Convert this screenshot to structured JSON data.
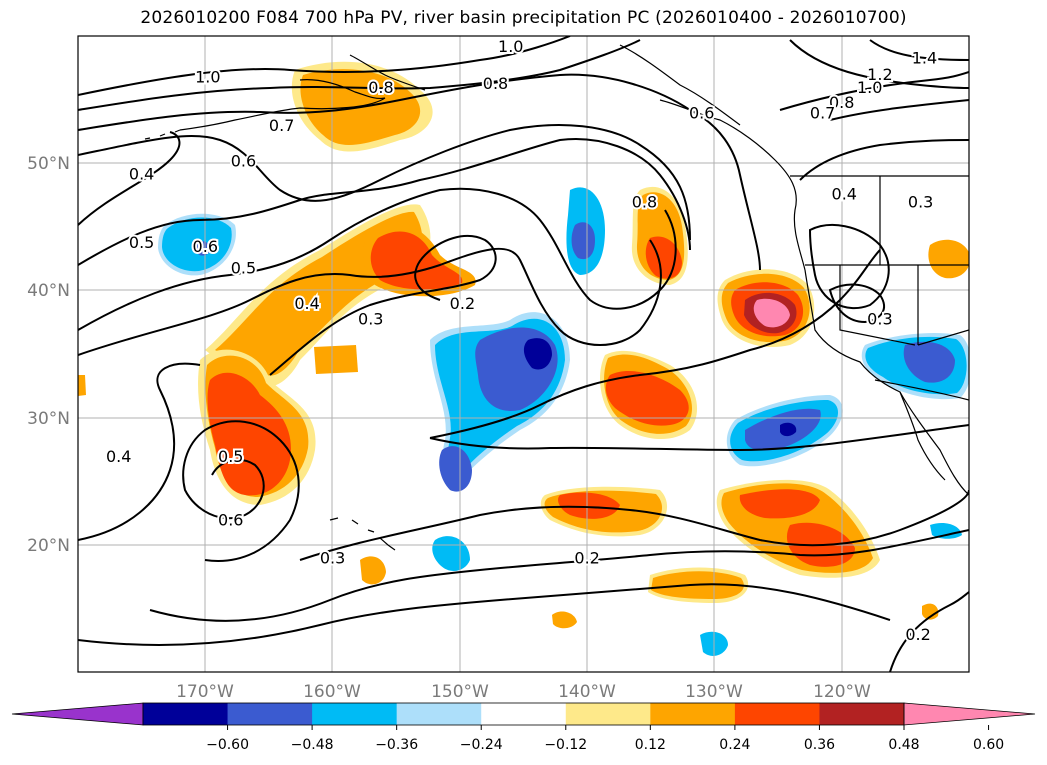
{
  "title": "2026010200 F084 700 hPa PV, river basin precipitation PC (2026010400 - 2026010700)",
  "map": {
    "lon_range": [
      -180,
      -110
    ],
    "lat_range": [
      10,
      60
    ],
    "lat_ticks": [
      {
        "value": 20,
        "label": "20°N"
      },
      {
        "value": 30,
        "label": "30°N"
      },
      {
        "value": 40,
        "label": "40°N"
      },
      {
        "value": 50,
        "label": "50°N"
      }
    ],
    "lon_ticks": [
      {
        "value": -170,
        "label": "170°W"
      },
      {
        "value": -160,
        "label": "160°W"
      },
      {
        "value": -150,
        "label": "150°W"
      },
      {
        "value": -140,
        "label": "140°W"
      },
      {
        "value": -130,
        "label": "130°W"
      },
      {
        "value": -120,
        "label": "120°W"
      }
    ]
  },
  "pv_contour_labels": [
    {
      "text": "1.0",
      "lon": -169.8,
      "lat": 56.8
    },
    {
      "text": "0.8",
      "lon": -156.2,
      "lat": 56.0
    },
    {
      "text": "0.8",
      "lon": -147.2,
      "lat": 56.3
    },
    {
      "text": "1.0",
      "lon": -146.0,
      "lat": 59.2
    },
    {
      "text": "0.7",
      "lon": -164.0,
      "lat": 53.0
    },
    {
      "text": "0.6",
      "lon": -167.0,
      "lat": 50.2
    },
    {
      "text": "0.4",
      "lon": -175.0,
      "lat": 49.2
    },
    {
      "text": "0.5",
      "lon": -175.0,
      "lat": 43.8
    },
    {
      "text": "0.6",
      "lon": -170.0,
      "lat": 43.5
    },
    {
      "text": "0.5",
      "lon": -167.0,
      "lat": 41.8
    },
    {
      "text": "0.4",
      "lon": -162.0,
      "lat": 39.0
    },
    {
      "text": "0.3",
      "lon": -157.0,
      "lat": 37.8
    },
    {
      "text": "0.2",
      "lon": -149.8,
      "lat": 39.0
    },
    {
      "text": "0.8",
      "lon": -135.5,
      "lat": 47.0
    },
    {
      "text": "0.6",
      "lon": -131.0,
      "lat": 54.0
    },
    {
      "text": "1.4",
      "lon": -113.5,
      "lat": 58.3
    },
    {
      "text": "1.2",
      "lon": -117.0,
      "lat": 57.0
    },
    {
      "text": "1.0",
      "lon": -117.8,
      "lat": 56.0
    },
    {
      "text": "0.8",
      "lon": -120.0,
      "lat": 54.8
    },
    {
      "text": "0.7",
      "lon": -121.5,
      "lat": 54.0
    },
    {
      "text": "0.4",
      "lon": -119.8,
      "lat": 47.6
    },
    {
      "text": "0.3",
      "lon": -117.0,
      "lat": 37.8
    },
    {
      "text": "0.3",
      "lon": -113.8,
      "lat": 47.0
    },
    {
      "text": "0.4",
      "lon": -176.8,
      "lat": 27.0
    },
    {
      "text": "0.5",
      "lon": -168.0,
      "lat": 27.0
    },
    {
      "text": "0.6",
      "lon": -168.0,
      "lat": 22.0
    },
    {
      "text": "0.3",
      "lon": -160.0,
      "lat": 19.0
    },
    {
      "text": "0.2",
      "lon": -140.0,
      "lat": 19.0
    },
    {
      "text": "0.2",
      "lon": -114.0,
      "lat": 13.0
    }
  ],
  "colorbar": {
    "labels": [
      "−0.60",
      "−0.48",
      "−0.36",
      "−0.24",
      "−0.12",
      "0.12",
      "0.24",
      "0.36",
      "0.48",
      "0.60"
    ],
    "colors": [
      "#9933cc",
      "#000099",
      "#3b5bd0",
      "#00bbf5",
      "#addffa",
      "#ffffff",
      "#fee98a",
      "#fea500",
      "#fe4500",
      "#b22222",
      "#ff87b0"
    ]
  },
  "colors": {
    "coast": "#000000",
    "grid": "#b0b0b0"
  }
}
